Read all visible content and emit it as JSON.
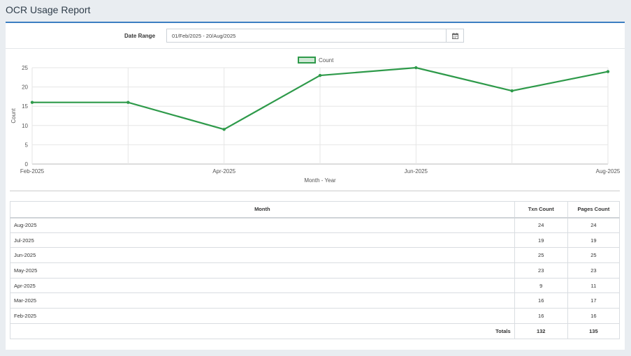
{
  "page": {
    "title": "OCR Usage Report"
  },
  "filter": {
    "label": "Date Range",
    "value": "01/Feb/2025 - 20/Aug/2025",
    "calendar_icon": "calendar-icon"
  },
  "colors": {
    "accent": "#3c7fc2",
    "series": "#2e9a4a"
  },
  "chart_data": {
    "type": "line",
    "x": [
      "Feb-2025",
      "Mar-2025",
      "Apr-2025",
      "May-2025",
      "Jun-2025",
      "Jul-2025",
      "Aug-2025"
    ],
    "x_tick_labels": [
      "Feb-2025",
      "Apr-2025",
      "Jun-2025",
      "Aug-2025"
    ],
    "series": [
      {
        "name": "Count",
        "values": [
          16,
          16,
          9,
          23,
          25,
          19,
          24
        ]
      }
    ],
    "xlabel": "Month - Year",
    "ylabel": "Count",
    "ylim": [
      0,
      25
    ],
    "yticks": [
      0,
      5,
      10,
      15,
      20,
      25
    ],
    "grid": true,
    "legend": "top-center"
  },
  "table": {
    "headers": {
      "month": "Month",
      "txn": "Txn Count",
      "pages": "Pages Count"
    },
    "rows": [
      {
        "month": "Aug-2025",
        "txn": "24",
        "pages": "24"
      },
      {
        "month": "Jul-2025",
        "txn": "19",
        "pages": "19"
      },
      {
        "month": "Jun-2025",
        "txn": "25",
        "pages": "25"
      },
      {
        "month": "May-2025",
        "txn": "23",
        "pages": "23"
      },
      {
        "month": "Apr-2025",
        "txn": "9",
        "pages": "11"
      },
      {
        "month": "Mar-2025",
        "txn": "16",
        "pages": "17"
      },
      {
        "month": "Feb-2025",
        "txn": "16",
        "pages": "16"
      }
    ],
    "totals": {
      "label": "Totals",
      "txn": "132",
      "pages": "135"
    }
  }
}
